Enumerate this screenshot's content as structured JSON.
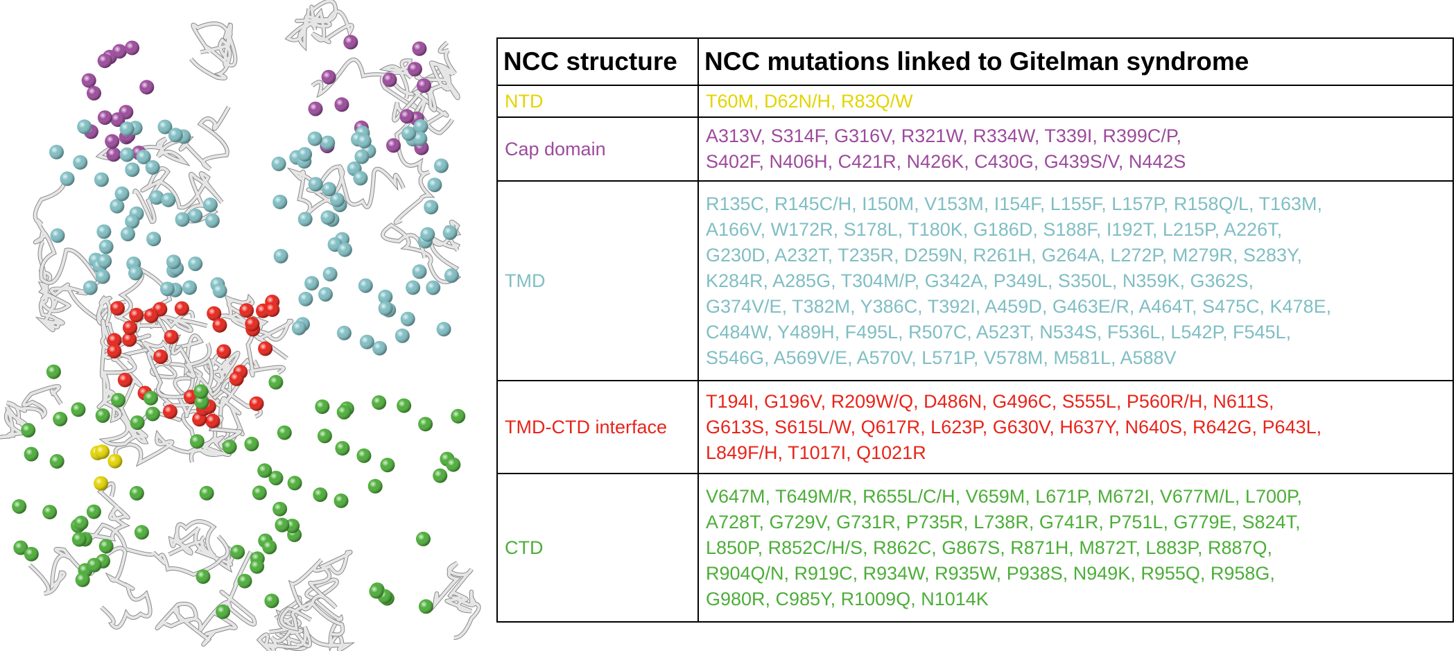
{
  "table": {
    "header": [
      "NCC structure",
      "NCC mutations linked to Gitelman syndrome"
    ],
    "rows": [
      {
        "structure": "NTD",
        "color": "#e3d400",
        "mutations": [
          "T60M, D62N/H, R83Q/W"
        ]
      },
      {
        "structure": "Cap domain",
        "color": "#9c4a9c",
        "mutations": [
          "A313V, S314F, G316V, R321W, R334W, T339I, R399C/P,",
          "S402F, N406H, C421R, N426K, C430G, G439S/V, N442S"
        ]
      },
      {
        "structure": "TMD",
        "color": "#7fbec3",
        "mutations": [
          "R135C, R145C/H, I150M, V153M, I154F, L155F, L157P, R158Q/L, T163M,",
          "A166V, W172R, S178L, T180K, G186D, S188F, I192T, L215P, A226T,",
          "G230D, A232T, T235R, D259N, R261H, G264A, L272P, M279R, S283Y,",
          "K284R, A285G, T304M/P, G342A, P349L, S350L, N359K, G362S,",
          "G374V/E, T382M, Y386C, T392I, A459D, G463E/R, A464T, S475C, K478E,",
          "C484W, Y489H, F495L, R507C, A523T, N534S, F536L, L542P, F545L,",
          "S546G, A569V/E, A570V, L571P, V578M, M581L, A588V"
        ]
      },
      {
        "structure": "TMD-CTD interface",
        "color": "#e8241a",
        "mutations": [
          "T194I, G196V, R209W/Q, D486N, G496C, S555L, P560R/H, N611S,",
          "G613S, S615L/W, Q617R, L623P, G630V, H637Y, N640S, R642G, P643L,",
          "L849F/H, T1017I, Q1021R"
        ]
      },
      {
        "structure": "CTD",
        "color": "#4cae38",
        "mutations": [
          "V647M, T649M/R, R655L/C/H, V659M, L671P, M672I, V677M/L, L700P,",
          "A728T, G729V, G731R, P735R, L738R, G741R, P751L, G779E, S824T,",
          "L850P, R852C/H/S, R862C, G867S, R871H, M872T, L883P, R887Q,",
          "R904Q/N, R919C, R934W, R935W, P938S, N949K, R955Q, R958G,",
          "G980R, C985Y, R1009Q, N1014K"
        ]
      }
    ]
  }
}
